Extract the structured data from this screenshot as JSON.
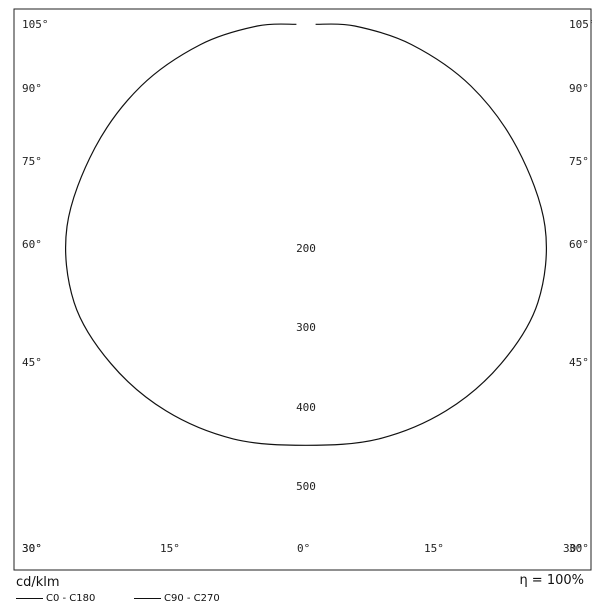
{
  "chart_data": {
    "type": "polar",
    "unit_label": "cd/klm",
    "efficiency": "η = 100%",
    "radial_tick_labels": [
      "200",
      "300",
      "400",
      "500"
    ],
    "angle_tick_labels": {
      "left": [
        "105°",
        "90°",
        "75°",
        "60°",
        "45°",
        "30°"
      ],
      "right": [
        "105°",
        "90°",
        "75°",
        "60°",
        "45°",
        "30°"
      ],
      "bottom": [
        "30°",
        "15°",
        "0°",
        "15°",
        "30°"
      ]
    },
    "legend": [
      {
        "label": "C0 - C180"
      },
      {
        "label": "C90 - C270"
      }
    ],
    "series": [
      {
        "name": "C0 - C180",
        "angles_deg": [
          0,
          10,
          20,
          30,
          40,
          50,
          60,
          70,
          80,
          90,
          100
        ],
        "values": [
          430,
          430,
          420,
          400,
          370,
          320,
          250,
          180,
          110,
          50,
          10
        ]
      }
    ]
  }
}
